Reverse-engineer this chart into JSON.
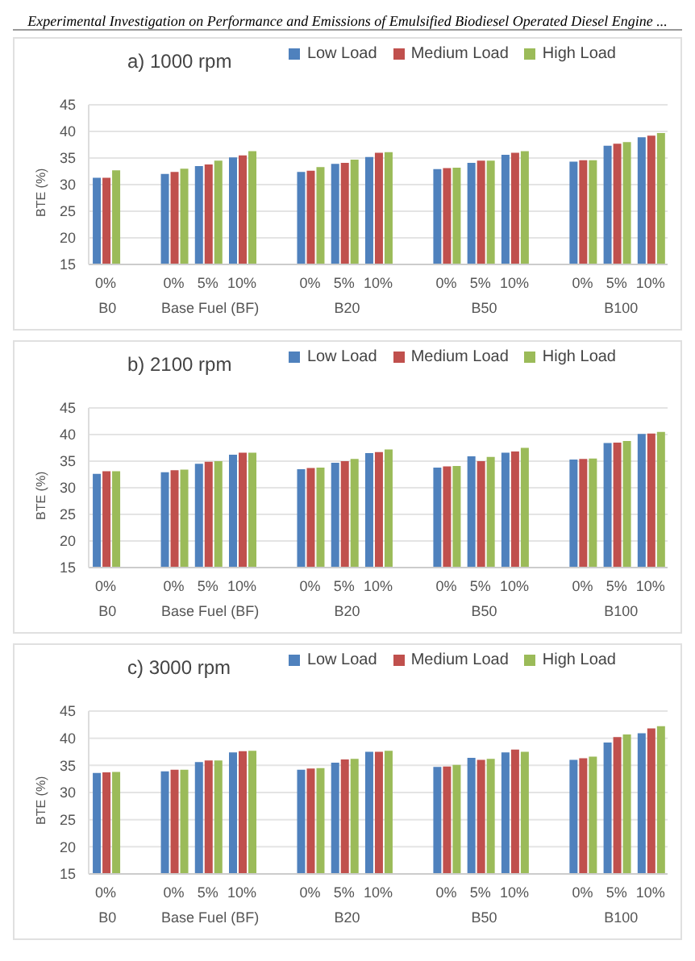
{
  "chart_data": [
    {
      "type": "bar",
      "title": "a) 1000  rpm",
      "ylabel": "BTE (%)",
      "categories": [
        "0%",
        null,
        "0%",
        "5%",
        "10%",
        null,
        "0%",
        "5%",
        "10%",
        null,
        "0%",
        "5%",
        "10%",
        null,
        "0%",
        "5%",
        "10%"
      ],
      "series": [
        {
          "name": "Low Load",
          "color": "#4f81bd",
          "values": [
            31.3,
            null,
            32.0,
            33.5,
            35.1,
            null,
            32.4,
            33.9,
            35.2,
            null,
            32.9,
            34.1,
            35.6,
            null,
            34.3,
            37.3,
            38.9
          ]
        },
        {
          "name": "Medium Load",
          "color": "#c0504d",
          "values": [
            31.3,
            null,
            32.4,
            33.8,
            35.5,
            null,
            32.6,
            34.1,
            36.0,
            null,
            33.1,
            34.5,
            36.0,
            null,
            34.6,
            37.7,
            39.2
          ]
        },
        {
          "name": "High Load",
          "color": "#9bbb59",
          "values": [
            32.7,
            null,
            33.0,
            34.5,
            36.3,
            null,
            33.3,
            34.7,
            36.1,
            null,
            33.2,
            34.5,
            36.3,
            null,
            34.6,
            38.0,
            39.7
          ]
        }
      ],
      "ylim": [
        15,
        45
      ],
      "yticks": [
        15,
        20,
        25,
        30,
        35,
        40,
        45
      ],
      "grid": "y",
      "legend": "top",
      "annotations": [
        "B0",
        "Base Fuel (BF)",
        "B20",
        "B50",
        "B100",
        "Experimental Investigation on Performance and Emissions of Emulsified Biodiesel Operated Diesel Engine ..."
      ]
    },
    {
      "type": "bar",
      "title": "b) 2100 rpm",
      "ylabel": "BTE (%)",
      "categories": [
        "0%",
        null,
        "0%",
        "5%",
        "10%",
        null,
        "0%",
        "5%",
        "10%",
        null,
        "0%",
        "5%",
        "10%",
        null,
        "0%",
        "5%",
        "10%"
      ],
      "series": [
        {
          "name": "Low Load",
          "color": "#4f81bd",
          "values": [
            32.6,
            null,
            32.9,
            34.5,
            36.2,
            null,
            33.5,
            34.7,
            36.5,
            null,
            33.8,
            35.9,
            36.6,
            null,
            35.3,
            38.4,
            40.1
          ]
        },
        {
          "name": "Medium Load",
          "color": "#c0504d",
          "values": [
            33.1,
            null,
            33.3,
            34.9,
            36.6,
            null,
            33.7,
            35.0,
            36.7,
            null,
            34.0,
            35.0,
            36.8,
            null,
            35.4,
            38.5,
            40.2
          ]
        },
        {
          "name": "High Load",
          "color": "#9bbb59",
          "values": [
            33.1,
            null,
            33.4,
            35.0,
            36.6,
            null,
            33.8,
            35.4,
            37.2,
            null,
            34.1,
            35.8,
            37.5,
            null,
            35.5,
            38.8,
            40.5
          ]
        }
      ],
      "ylim": [
        15,
        45
      ],
      "yticks": [
        15,
        20,
        25,
        30,
        35,
        40,
        45
      ],
      "grid": "y",
      "legend": "top",
      "annotations": [
        "B0",
        "Base Fuel (BF)",
        "B20",
        "B50",
        "B100"
      ]
    },
    {
      "type": "bar",
      "title": "c) 3000 rpm",
      "ylabel": "BTE (%)",
      "categories": [
        "0%",
        null,
        "0%",
        "5%",
        "10%",
        null,
        "0%",
        "5%",
        "10%",
        null,
        "0%",
        "5%",
        "10%",
        null,
        "0%",
        "5%",
        "10%"
      ],
      "series": [
        {
          "name": "Low Load",
          "color": "#4f81bd",
          "values": [
            33.6,
            null,
            33.9,
            35.6,
            37.4,
            null,
            34.2,
            35.5,
            37.5,
            null,
            34.7,
            36.4,
            37.4,
            null,
            36.0,
            39.2,
            40.9
          ]
        },
        {
          "name": "Medium Load",
          "color": "#c0504d",
          "values": [
            33.7,
            null,
            34.2,
            35.9,
            37.6,
            null,
            34.4,
            36.1,
            37.5,
            null,
            34.8,
            36.0,
            37.9,
            null,
            36.3,
            40.2,
            41.8
          ]
        },
        {
          "name": "High Load",
          "color": "#9bbb59",
          "values": [
            33.8,
            null,
            34.2,
            35.9,
            37.7,
            null,
            34.5,
            36.2,
            37.7,
            null,
            35.1,
            36.2,
            37.5,
            null,
            36.6,
            40.7,
            42.2
          ]
        }
      ],
      "ylim": [
        15,
        45
      ],
      "yticks": [
        15,
        20,
        25,
        30,
        35,
        40,
        45
      ],
      "grid": "y",
      "legend": "top",
      "annotations": [
        "B0",
        "Base Fuel (BF)",
        "B20",
        "B50",
        "B100"
      ]
    }
  ]
}
